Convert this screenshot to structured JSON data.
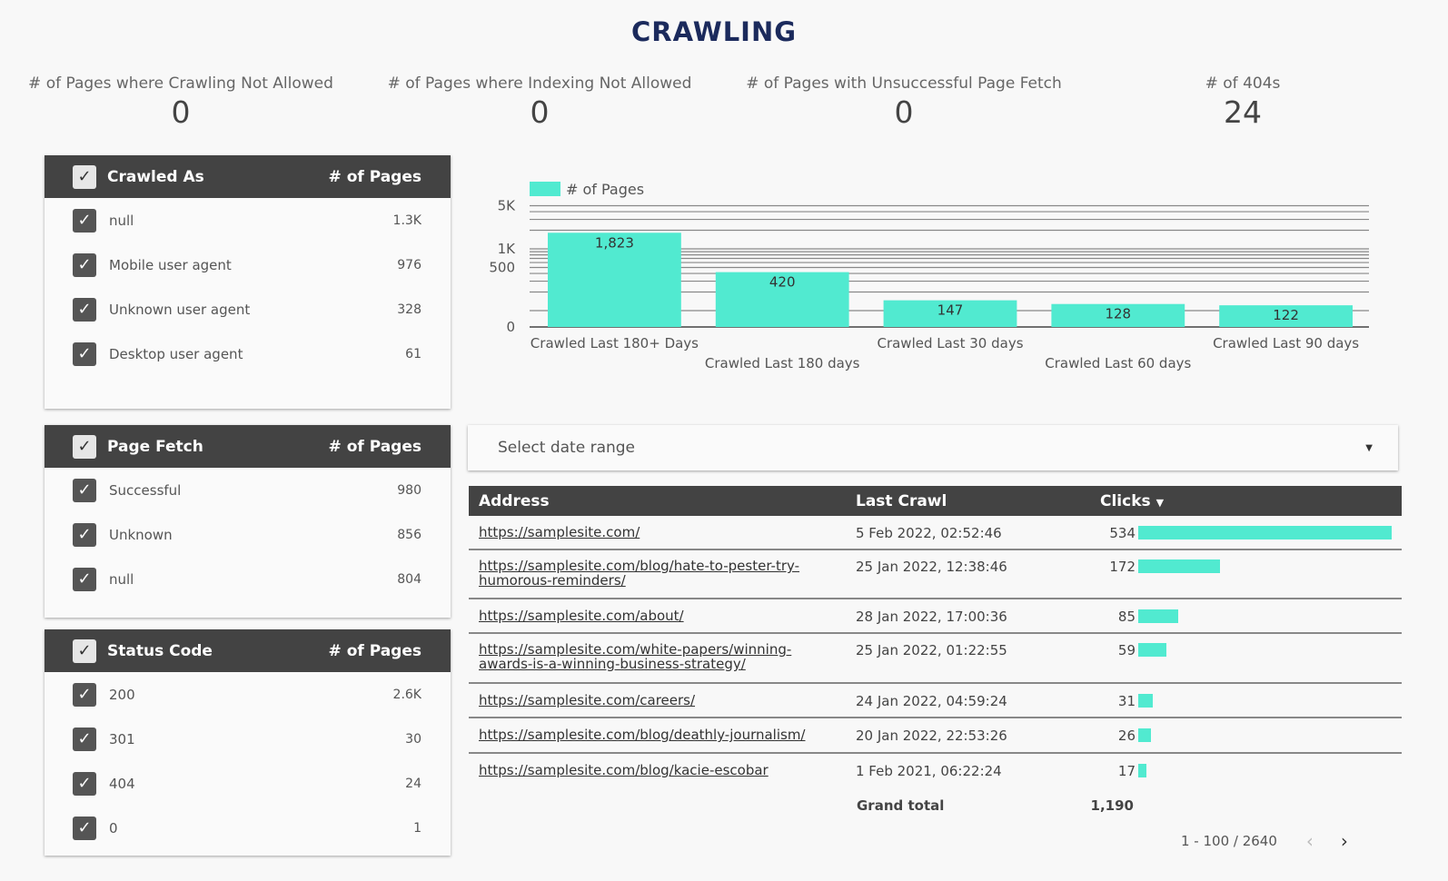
{
  "title": "CRAWLING",
  "scorecards": [
    {
      "label": "# of Pages where Crawling Not Allowed",
      "value": "0"
    },
    {
      "label": "# of Pages where Indexing Not Allowed",
      "value": "0"
    },
    {
      "label": "# of Pages with Unsuccessful Page Fetch",
      "value": "0"
    },
    {
      "label": "# of 404s",
      "value": "24"
    }
  ],
  "panels": [
    {
      "title": "Crawled As",
      "metric": "# of Pages",
      "rows": [
        {
          "label": "null",
          "value": "1.3K"
        },
        {
          "label": "Mobile user agent",
          "value": "976"
        },
        {
          "label": "Unknown user agent",
          "value": "328"
        },
        {
          "label": "Desktop user agent",
          "value": "61"
        }
      ]
    },
    {
      "title": "Page Fetch",
      "metric": "# of Pages",
      "rows": [
        {
          "label": "Successful",
          "value": "980"
        },
        {
          "label": "Unknown",
          "value": "856"
        },
        {
          "label": "null",
          "value": "804"
        }
      ]
    },
    {
      "title": "Status Code",
      "metric": "# of Pages",
      "rows": [
        {
          "label": "200",
          "value": "2.6K"
        },
        {
          "label": "301",
          "value": "30"
        },
        {
          "label": "404",
          "value": "24"
        },
        {
          "label": "0",
          "value": "1"
        }
      ]
    }
  ],
  "chart_data": {
    "type": "bar",
    "categories": [
      "Crawled Last 180+ Days",
      "Crawled Last 180 days",
      "Crawled Last 30 days",
      "Crawled Last 60 days",
      "Crawled Last 90 days"
    ],
    "series": [
      {
        "name": "# of Pages",
        "values": [
          1823,
          420,
          147,
          128,
          122
        ]
      }
    ],
    "data_labels": [
      "1,823",
      "420",
      "147",
      "128",
      "122"
    ],
    "y_scale": "log",
    "y_ticks": [
      "0",
      "500",
      "1K",
      "5K"
    ],
    "grid": true,
    "legend": "top-left",
    "color": "#51ead0"
  },
  "date_range": {
    "placeholder": "Select date range"
  },
  "table": {
    "columns": [
      "Address",
      "Last Crawl",
      "Clicks"
    ],
    "sort_indicator": "▼",
    "rows": [
      {
        "address": "https://samplesite.com/",
        "last_crawl": "5 Feb 2022, 02:52:46",
        "clicks": 534
      },
      {
        "address": "https://samplesite.com/blog/hate-to-pester-try-humorous-reminders/",
        "last_crawl": "25 Jan 2022, 12:38:46",
        "clicks": 172
      },
      {
        "address": "https://samplesite.com/about/",
        "last_crawl": "28 Jan 2022, 17:00:36",
        "clicks": 85
      },
      {
        "address": "https://samplesite.com/white-papers/winning-awards-is-a-winning-business-strategy/",
        "last_crawl": "25 Jan 2022, 01:22:55",
        "clicks": 59
      },
      {
        "address": "https://samplesite.com/careers/",
        "last_crawl": "24 Jan 2022, 04:59:24",
        "clicks": 31
      },
      {
        "address": "https://samplesite.com/blog/deathly-journalism/",
        "last_crawl": "20 Jan 2022, 22:53:26",
        "clicks": 26
      },
      {
        "address": "https://samplesite.com/blog/kacie-escobar",
        "last_crawl": "1 Feb 2021, 06:22:24",
        "clicks": 17
      }
    ],
    "grand_total_label": "Grand total",
    "grand_total": "1,190",
    "bar_color": "#51ead0"
  },
  "pagination": {
    "range": "1 - 100 / 2640",
    "prev": "‹",
    "next": "›"
  }
}
